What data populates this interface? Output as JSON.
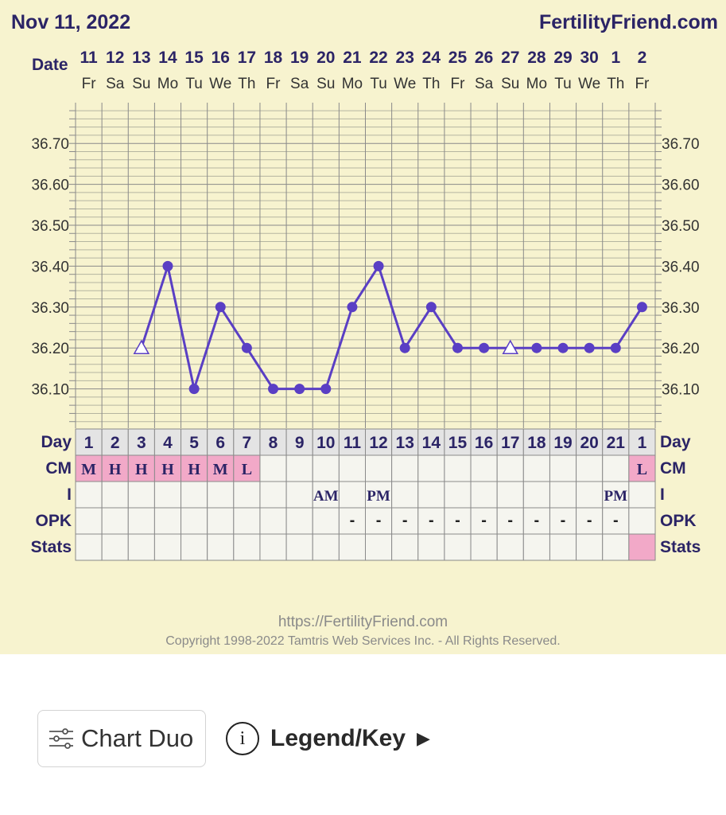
{
  "header": {
    "date": "Nov 11, 2022",
    "site": "FertilityFriend.com"
  },
  "labels": {
    "date": "Date",
    "day": "Day",
    "cm": "CM",
    "i": "I",
    "opk": "OPK",
    "stats": "Stats"
  },
  "chart_data": {
    "type": "line",
    "title": "",
    "dates": [
      "11",
      "12",
      "13",
      "14",
      "15",
      "16",
      "17",
      "18",
      "19",
      "20",
      "21",
      "22",
      "23",
      "24",
      "25",
      "26",
      "27",
      "28",
      "29",
      "30",
      "1",
      "2"
    ],
    "weekdays": [
      "Fr",
      "Sa",
      "Su",
      "Mo",
      "Tu",
      "We",
      "Th",
      "Fr",
      "Sa",
      "Su",
      "Mo",
      "Tu",
      "We",
      "Th",
      "Fr",
      "Sa",
      "Su",
      "Mo",
      "Tu",
      "We",
      "Th",
      "Fr"
    ],
    "y_ticks": [
      "36.70",
      "36.60",
      "36.50",
      "36.40",
      "36.30",
      "36.20",
      "36.10"
    ],
    "ylim": [
      36.0,
      36.8
    ],
    "series": [
      {
        "values": [
          null,
          null,
          36.2,
          36.4,
          36.1,
          36.3,
          36.2,
          36.1,
          36.1,
          36.1,
          36.3,
          36.4,
          36.2,
          36.3,
          36.2,
          36.2,
          36.2,
          36.2,
          36.2,
          36.2,
          36.2,
          36.3
        ],
        "markers": [
          "",
          "",
          "open-triangle",
          "dot",
          "dot",
          "dot",
          "dot",
          "dot",
          "dot",
          "dot",
          "dot",
          "dot",
          "dot",
          "dot",
          "dot",
          "dot",
          "open-triangle",
          "dot",
          "dot",
          "dot",
          "dot",
          "dot"
        ],
        "color": "#5a3fc4"
      }
    ],
    "cycle_days": [
      "1",
      "2",
      "3",
      "4",
      "5",
      "6",
      "7",
      "8",
      "9",
      "10",
      "11",
      "12",
      "13",
      "14",
      "15",
      "16",
      "17",
      "18",
      "19",
      "20",
      "21",
      "1"
    ],
    "cm": [
      "M",
      "H",
      "H",
      "H",
      "H",
      "M",
      "L",
      "",
      "",
      "",
      "",
      "",
      "",
      "",
      "",
      "",
      "",
      "",
      "",
      "",
      "",
      "L"
    ],
    "i": [
      "",
      "",
      "",
      "",
      "",
      "",
      "",
      "",
      "",
      "AM",
      "",
      "PM",
      "",
      "",
      "",
      "",
      "",
      "",
      "",
      "",
      "PM",
      ""
    ],
    "opk": [
      "",
      "",
      "",
      "",
      "",
      "",
      "",
      "",
      "",
      "",
      "-",
      "-",
      "-",
      "-",
      "-",
      "-",
      "-",
      "-",
      "-",
      "-",
      "-",
      ""
    ],
    "stats_highlight": [
      false,
      false,
      false,
      false,
      false,
      false,
      false,
      false,
      false,
      false,
      false,
      false,
      false,
      false,
      false,
      false,
      false,
      false,
      false,
      false,
      false,
      true
    ],
    "colors": {
      "grid": "#8a8a8a",
      "grid_minor": "#b5b5a0",
      "text": "#2b2466",
      "cm_fill": "#f2a9c8",
      "day_fill": "#e4e4e4",
      "cell_fill": "#f5f5ef"
    }
  },
  "footer": {
    "url": "https://FertilityFriend.com",
    "copyright": "Copyright 1998-2022 Tamtris Web Services Inc. - All Rights Reserved."
  },
  "buttons": {
    "chart_duo": "Chart Duo",
    "legend": "Legend/Key"
  },
  "icons": {
    "sliders": "sliders-icon",
    "info": "info-icon",
    "arrow": "play-arrow-icon"
  }
}
